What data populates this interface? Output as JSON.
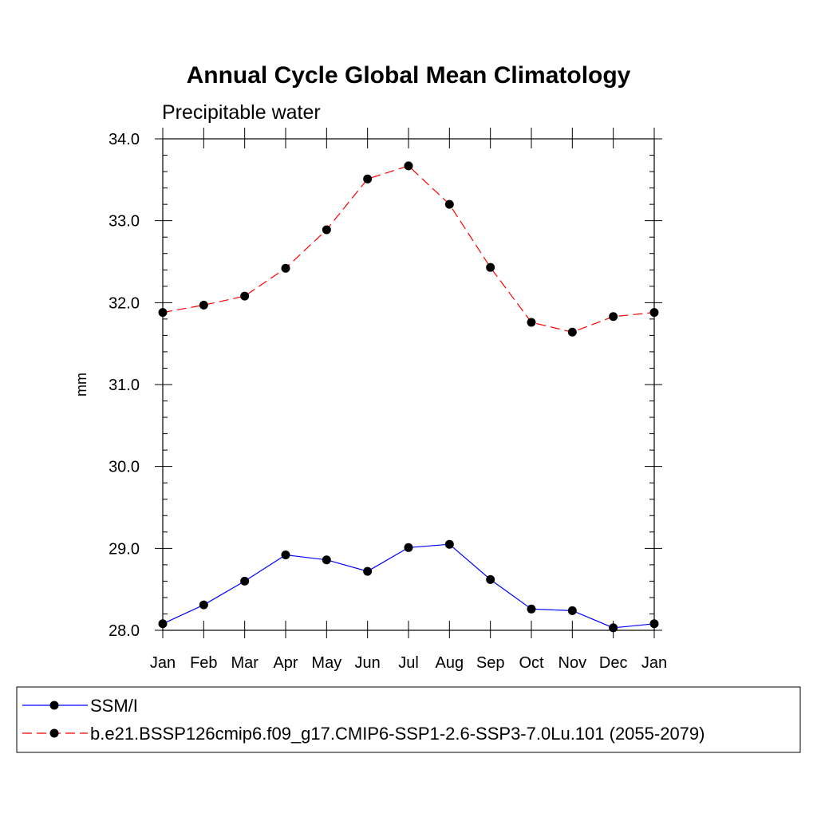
{
  "chart_data": {
    "type": "line",
    "title": "Annual Cycle Global Mean Climatology",
    "subtitle": "Precipitable water",
    "xlabel": "",
    "ylabel": "mm",
    "categories": [
      "Jan",
      "Feb",
      "Mar",
      "Apr",
      "May",
      "Jun",
      "Jul",
      "Aug",
      "Sep",
      "Oct",
      "Nov",
      "Dec",
      "Jan"
    ],
    "ylim": [
      28.0,
      34.0
    ],
    "yticks": [
      "28.0",
      "29.0",
      "30.0",
      "31.0",
      "32.0",
      "33.0",
      "34.0"
    ],
    "grid": false,
    "legend_position": "bottom",
    "series": [
      {
        "name": "SSM/I",
        "color": "#0000ff",
        "line_style": "solid",
        "marker": "filled-circle",
        "values": [
          28.08,
          28.31,
          28.6,
          28.92,
          28.86,
          28.72,
          29.01,
          29.05,
          28.62,
          28.26,
          28.24,
          28.03,
          28.08
        ]
      },
      {
        "name": "b.e21.BSSP126cmip6.f09_g17.CMIP6-SSP1-2.6-SSP3-7.0Lu.101 (2055-2079)",
        "color": "#ff0000",
        "line_style": "dashed",
        "marker": "filled-circle",
        "values": [
          31.88,
          31.97,
          32.08,
          32.42,
          32.89,
          33.51,
          33.67,
          33.2,
          32.43,
          31.76,
          31.64,
          31.83,
          31.88
        ]
      }
    ]
  }
}
